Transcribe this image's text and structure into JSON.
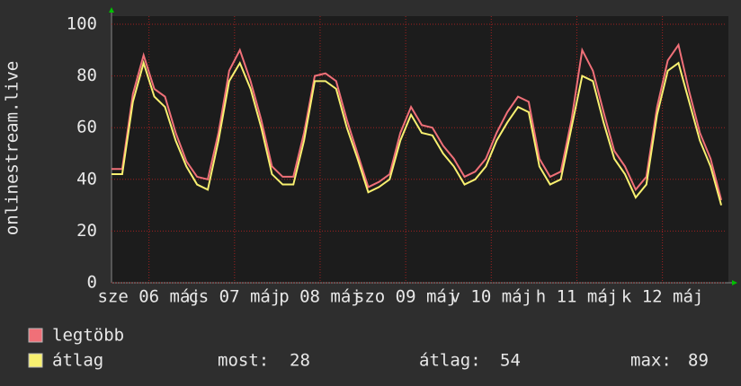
{
  "chart_data": {
    "type": "line",
    "y_label": "onlinestream.live",
    "x": [
      0,
      3,
      6,
      9,
      12,
      15,
      18,
      21,
      24,
      27,
      30,
      33,
      36,
      39,
      42,
      45,
      48,
      51,
      54,
      57,
      60,
      63,
      66,
      69,
      72,
      75,
      78,
      81,
      84,
      87,
      90,
      93,
      96,
      99,
      102,
      105,
      108,
      111,
      114,
      117,
      120,
      123,
      126,
      129,
      132,
      135,
      138,
      141,
      144,
      147,
      150,
      153,
      156,
      159,
      162,
      165,
      168,
      171
    ],
    "xlim": [
      0,
      172.5
    ],
    "xticks": [
      {
        "value": 10.5,
        "label": "sze 06 máj"
      },
      {
        "value": 34.5,
        "label": "cs 07 máj"
      },
      {
        "value": 58.5,
        "label": "p 08 máj"
      },
      {
        "value": 82.5,
        "label": "szo 09 máj"
      },
      {
        "value": 106.5,
        "label": "v 10 máj"
      },
      {
        "value": 130.5,
        "label": "h 11 máj"
      },
      {
        "value": 154.5,
        "label": "k 12 máj"
      }
    ],
    "ylim": [
      0,
      100
    ],
    "yticks": [
      0,
      20,
      40,
      60,
      80,
      100
    ],
    "grid": true,
    "series": [
      {
        "name": "legtöbb",
        "color": "#f07078",
        "values": [
          44,
          44,
          73,
          88,
          75,
          72,
          58,
          47,
          41,
          40,
          58,
          82,
          90,
          78,
          63,
          45,
          41,
          41,
          58,
          80,
          81,
          78,
          63,
          50,
          37,
          39,
          42,
          58,
          68,
          61,
          60,
          53,
          48,
          41,
          43,
          48,
          58,
          66,
          72,
          70,
          48,
          41,
          43,
          63,
          90,
          82,
          66,
          51,
          45,
          36,
          41,
          68,
          86,
          92,
          74,
          58,
          48,
          32
        ]
      },
      {
        "name": "átlag",
        "color": "#f8f070",
        "values": [
          42,
          42,
          70,
          85,
          72,
          68,
          55,
          45,
          38,
          36,
          55,
          78,
          85,
          75,
          60,
          42,
          38,
          38,
          55,
          78,
          78,
          75,
          60,
          48,
          35,
          37,
          40,
          55,
          65,
          58,
          57,
          50,
          45,
          38,
          40,
          45,
          55,
          62,
          68,
          66,
          45,
          38,
          40,
          60,
          80,
          78,
          62,
          48,
          42,
          33,
          38,
          65,
          82,
          85,
          70,
          55,
          45,
          30
        ]
      }
    ],
    "stats": [
      {
        "label": "most:",
        "value": 28
      },
      {
        "label": "átlag:",
        "value": 54
      },
      {
        "label": "max:",
        "value": 89
      }
    ]
  }
}
